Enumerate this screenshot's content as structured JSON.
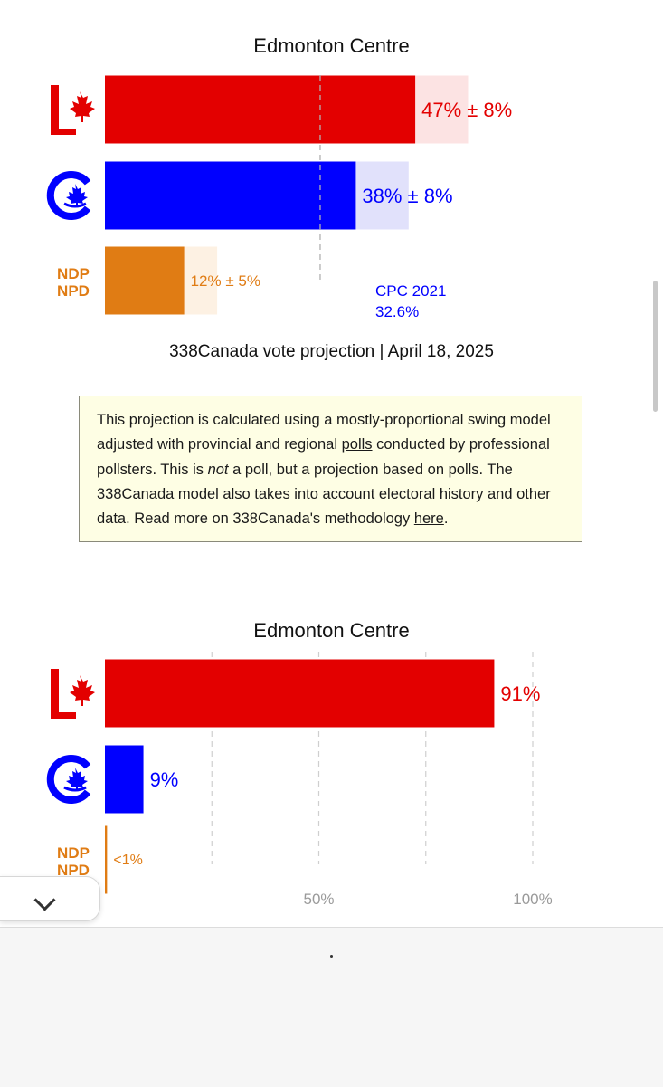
{
  "colors": {
    "lpc": "#e30000",
    "lpc_light": "#fce3e3",
    "cpc": "#0000ff",
    "cpc_light": "#e1e1fb",
    "ndp": "#e07c14",
    "ndp_light": "#fdf1e3"
  },
  "page": {
    "caption": "338Canada vote projection | April 18, 2025",
    "note": {
      "t1": "This projection is calculated using a mostly-proportional swing model adjusted with provincial and regional ",
      "link_polls": "polls",
      "t2": " conducted by professional pollsters. This is ",
      "em_not": "not",
      "t3": " a poll, but a projection based on polls. The 338Canada model also takes into account electoral history and other data. Read more on 338Canada's methodology ",
      "link_here": "here",
      "t4": "."
    },
    "ndp_logo": {
      "line1": "NDP",
      "line2": "NPD"
    }
  },
  "chart_data": [
    {
      "type": "bar",
      "title": "Edmonton Centre",
      "categories": [
        "LPC",
        "CPC",
        "NDP"
      ],
      "values": [
        47,
        38,
        12
      ],
      "margins": [
        8,
        8,
        5
      ],
      "labels": [
        "47% ± 8%",
        "38% ± 8%",
        "12% ± 5%"
      ],
      "reference": {
        "label": "CPC 2021",
        "value_label": "32.6%",
        "value": 32.6
      },
      "xlim": [
        0,
        60
      ]
    },
    {
      "type": "bar",
      "title": "Edmonton Centre",
      "categories": [
        "LPC",
        "CPC",
        "NDP"
      ],
      "values": [
        91,
        9,
        0.5
      ],
      "labels": [
        "91%",
        "9%",
        "<1%"
      ],
      "xlim": [
        0,
        100
      ],
      "xticks": [
        25,
        50,
        75,
        100
      ],
      "xtick_labels": [
        "50%",
        "100%"
      ],
      "xtick_label_values": [
        50,
        100
      ]
    }
  ]
}
